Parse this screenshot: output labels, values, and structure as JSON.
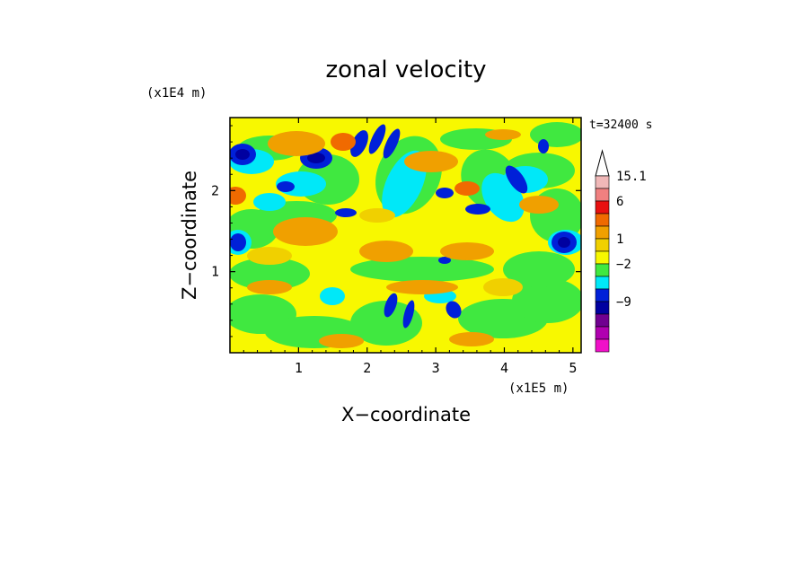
{
  "chart_data": {
    "type": "heatmap",
    "title": "zonal velocity",
    "xlabel": "X−coordinate",
    "ylabel": "Z−coordinate",
    "x_unit": "(x1E5 m)",
    "y_unit": "(x1E4 m)",
    "time_label": "t=32400 s",
    "xlim": [
      0,
      5.12
    ],
    "ylim": [
      0,
      2.9
    ],
    "x_ticks": [
      1,
      2,
      3,
      4,
      5
    ],
    "y_ticks": [
      1,
      2
    ],
    "colorbar": {
      "tick_labels": [
        "15.1",
        "6",
        "1",
        "−2",
        "−9"
      ],
      "tick_after_band": [
        0,
        2,
        5,
        7,
        10
      ],
      "colors": [
        "#f0b8b8",
        "#f08080",
        "#e81010",
        "#f06a00",
        "#f0a000",
        "#f0d000",
        "#f8f800",
        "#40e840",
        "#00e8f8",
        "#0020d8",
        "#0000a0",
        "#700090",
        "#b000b0",
        "#f010c8"
      ],
      "extend": "max"
    },
    "palette": {
      "yellow": "#f8f800",
      "lightyellow": "#f0d000",
      "orange": "#f0a000",
      "darkorange": "#f06a00",
      "green": "#40e840",
      "cyan": "#00e8f8",
      "blue": "#0020d8",
      "navy": "#0000a0"
    },
    "grid": false
  }
}
